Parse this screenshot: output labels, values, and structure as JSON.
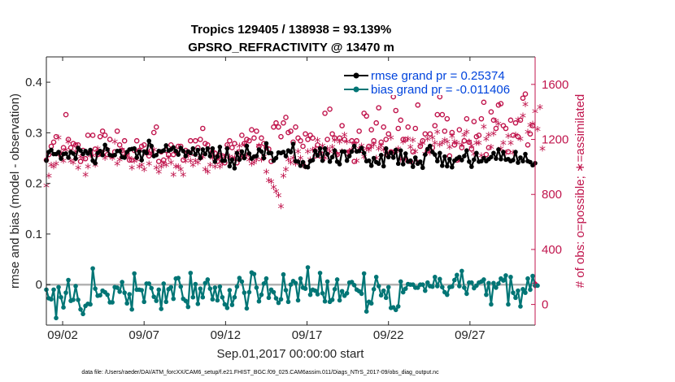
{
  "chart_data": {
    "type": "line",
    "title": "Tropics 129405 / 138938 = 93.139%",
    "subtitle": "GPSRO_REFRACTIVITY @ 13470 m",
    "xlabel": "Sep.01,2017 00:00:00 start",
    "ylabel": "rmse and bias (model - observation)",
    "ylabel_right": "# of obs: o=possible; ∗=assimilated",
    "x_tick_labels": [
      "09/02",
      "09/07",
      "09/12",
      "09/17",
      "09/22",
      "09/27"
    ],
    "x_tick_days": [
      2,
      7,
      12,
      17,
      22,
      27
    ],
    "xlim": [
      1,
      31
    ],
    "ylim": [
      -0.08,
      0.45
    ],
    "y_ticks": [
      "0",
      "0.1",
      "0.2",
      "0.3",
      "0.4"
    ],
    "y_tick_values": [
      0,
      0.1,
      0.2,
      0.3,
      0.4
    ],
    "ylim_right": [
      -150,
      1800
    ],
    "y_ticks_right": [
      "0",
      "400",
      "800",
      "1200",
      "1600"
    ],
    "y_tick_values_right": [
      0,
      400,
      800,
      1200,
      1600
    ],
    "legend": [
      {
        "label": "rmse grand pr = 0.25374",
        "color": "#000000"
      },
      {
        "label": "bias grand pr = -0.011406",
        "color": "#007575"
      }
    ],
    "series": [
      {
        "name": "rmse",
        "color": "#000000",
        "values": [
          0.245,
          0.262,
          0.266,
          0.258,
          0.258,
          0.262,
          0.249,
          0.258,
          0.259,
          0.251,
          0.262,
          0.259,
          0.249,
          0.27,
          0.265,
          0.258,
          0.264,
          0.259,
          0.266,
          0.245,
          0.24,
          0.26,
          0.264,
          0.256,
          0.276,
          0.267,
          0.256,
          0.255,
          0.256,
          0.264,
          0.264,
          0.252,
          0.251,
          0.262,
          0.267,
          0.268,
          0.269,
          0.251,
          0.263,
          0.246,
          0.263,
          0.26,
          0.284,
          0.274,
          0.254,
          0.256,
          0.264,
          0.263,
          0.265,
          0.275,
          0.265,
          0.267,
          0.271,
          0.264,
          0.257,
          0.27,
          0.264,
          0.254,
          0.263,
          0.26,
          0.269,
          0.257,
          0.266,
          0.25,
          0.267,
          0.258,
          0.269,
          0.254,
          0.269,
          0.243,
          0.253,
          0.272,
          0.245,
          0.245,
          0.269,
          0.234,
          0.247,
          0.23,
          0.26,
          0.247,
          0.263,
          0.25,
          0.274,
          0.259,
          0.249,
          0.253,
          0.254,
          0.267,
          0.263,
          0.25,
          0.279,
          0.26,
          0.26,
          0.245,
          0.25,
          0.261,
          0.26,
          0.262,
          0.254,
          0.265,
          0.262,
          0.278,
          0.244,
          0.243,
          0.235,
          0.242,
          0.233,
          0.232,
          0.244,
          0.246,
          0.264,
          0.255,
          0.269,
          0.245,
          0.269,
          0.258,
          0.243,
          0.252,
          0.265,
          0.243,
          0.238,
          0.263,
          0.263,
          0.245,
          0.254,
          0.263,
          0.274,
          0.263,
          0.264,
          0.27,
          0.26,
          0.244,
          0.245,
          0.235,
          0.25,
          0.242,
          0.239,
          0.256,
          0.234,
          0.269,
          0.252,
          0.261,
          0.251,
          0.266,
          0.239,
          0.265,
          0.238,
          0.259,
          0.243,
          0.245,
          0.233,
          0.251,
          0.239,
          0.243,
          0.231,
          0.257,
          0.268,
          0.274,
          0.262,
          0.257,
          0.244,
          0.26,
          0.235,
          0.253,
          0.234,
          0.248,
          0.232,
          0.245,
          0.249,
          0.252,
          0.246,
          0.254,
          0.265,
          0.243,
          0.233,
          0.247,
          0.26,
          0.243,
          0.244,
          0.25,
          0.244,
          0.248,
          0.252,
          0.26,
          0.249,
          0.267,
          0.248,
          0.262,
          0.247,
          0.248,
          0.244,
          0.246,
          0.262,
          0.241,
          0.251,
          0.244,
          0.258,
          0.244,
          0.242,
          0.236,
          0.24
        ]
      },
      {
        "name": "bias",
        "color": "#007575",
        "values": [
          -0.01,
          -0.027,
          -0.029,
          -0.01,
          -0.066,
          -0.005,
          -0.025,
          -0.045,
          -0.016,
          0.009,
          -0.032,
          -0.03,
          -0.003,
          -0.03,
          -0.049,
          -0.058,
          -0.042,
          -0.038,
          -0.039,
          0.032,
          -0.008,
          -0.022,
          -0.021,
          -0.012,
          -0.015,
          -0.02,
          -0.035,
          -0.035,
          -0.005,
          -0.006,
          -0.014,
          0.005,
          -0.016,
          -0.037,
          -0.019,
          -0.049,
          0.022,
          -0.01,
          -0.01,
          -0.011,
          -0.034,
          0.002,
          0.002,
          -0.007,
          -0.024,
          -0.032,
          -0.01,
          -0.048,
          0.002,
          -0.034,
          -0.009,
          -0.005,
          -0.028,
          0.012,
          0.013,
          -0.004,
          -0.028,
          -0.032,
          -0.044,
          0.023,
          -0.025,
          0.001,
          -0.038,
          -0.008,
          -0.025,
          0.003,
          0.01,
          -0.008,
          -0.029,
          -0.006,
          -0.031,
          -0.004,
          -0.025,
          -0.039,
          -0.046,
          -0.011,
          -0.04,
          -0.025,
          -0.004,
          0.013,
          0.006,
          -0.016,
          -0.047,
          -0.015,
          0.024,
          0.021,
          -0.006,
          -0.033,
          -0.02,
          0.002,
          0.012,
          -0.026,
          -0.01,
          -0.015,
          -0.027,
          -0.036,
          -0.029,
          0.02,
          -0.011,
          -0.034,
          0.0,
          0.007,
          0.003,
          -0.031,
          0.012,
          -0.006,
          -0.008,
          0.034,
          -0.02,
          -0.01,
          -0.012,
          -0.019,
          0.023,
          -0.017,
          -0.033,
          0.006,
          -0.034,
          -0.03,
          -0.009,
          0.01,
          -0.031,
          -0.013,
          -0.022,
          -0.017,
          0.004,
          0.005,
          -0.001,
          -0.01,
          -0.013,
          -0.018,
          0.022,
          -0.053,
          -0.034,
          -0.037,
          -0.009,
          0.015,
          -0.003,
          -0.021,
          -0.012,
          -0.026,
          -0.005,
          -0.046,
          -0.045,
          -0.05,
          -0.043,
          0.006,
          -0.015,
          -0.008,
          0.001,
          0.0,
          0.0,
          -0.006,
          -0.006,
          0.0,
          0.0,
          -0.012,
          0.004,
          -0.003,
          -0.004,
          0.015,
          -0.003,
          0.011,
          -0.005,
          -0.015,
          -0.02,
          -0.005,
          -0.004,
          0.009,
          0.019,
          -0.003,
          0.027,
          -0.006,
          -0.018,
          0.004,
          0.004,
          -0.007,
          -0.002,
          0.004,
          0.006,
          0.01,
          -0.02,
          0.003,
          -0.039,
          0.003,
          -0.006,
          0.002,
          0.012,
          0.008,
          0.018,
          -0.039,
          0.015,
          -0.016,
          -0.026,
          -0.012,
          -0.043,
          -0.009,
          -0.016,
          0.012,
          -0.01,
          0.017,
          -0.002,
          -0.002
        ]
      },
      {
        "name": "# of obs possible (o)",
        "axis": "right",
        "color": "#c0144c",
        "values": [
          1050,
          1090,
          1150,
          1180,
          1220,
          1100,
          1080,
          1140,
          1380,
          1200,
          1140,
          1170,
          1160,
          1160,
          1040,
          1120,
          1060,
          1230,
          1110,
          1230,
          1130,
          1090,
          1220,
          1260,
          1230,
          1090,
          1200,
          1080,
          1110,
          1260,
          1160,
          1120,
          1190,
          1100,
          1050,
          1050,
          1120,
          1190,
          1120,
          1150,
          1160,
          1110,
          1080,
          1120,
          1250,
          1290,
          1040,
          1110,
          1050,
          1120,
          1090,
          1160,
          1090,
          1110,
          1150,
          1150,
          1050,
          1120,
          1110,
          1190,
          1100,
          1190,
          1140,
          1200,
          1280,
          1170,
          1160,
          1120,
          1110,
          1100,
          1040,
          1080,
          1080,
          1030,
          1160,
          1190,
          1140,
          1170,
          1030,
          1110,
          1230,
          1170,
          1200,
          1190,
          1270,
          1210,
          1260,
          1150,
          1210,
          1170,
          1140,
          1130,
          1040,
          1290,
          1320,
          1290,
          1220,
          1320,
          1360,
          1250,
          1260,
          1180,
          1290,
          1210,
          1190,
          1150,
          1240,
          1200,
          1230,
          1210,
          1080,
          1160,
          1080,
          1120,
          1390,
          1200,
          1420,
          1240,
          1210,
          1090,
          1210,
          1300,
          1200,
          1100,
          1110,
          1190,
          1040,
          1190,
          1260,
          1120,
          1390,
          1370,
          1150,
          1270,
          1190,
          1320,
          1430,
          1180,
          1290,
          1200,
          1240,
          1110,
          1510,
          1410,
          1280,
          1340,
          1200,
          1200,
          1290,
          1040,
          1110,
          1280,
          1450,
          1150,
          1190,
          1240,
          1120,
          1240,
          1140,
          1300,
          1380,
          1510,
          1380,
          1260,
          1350,
          1080,
          1250,
          1160,
          1050,
          1270,
          1140,
          1190,
          1350,
          1180,
          1130,
          1330,
          1220,
          1230,
          1350,
          1470,
          1090,
          1140,
          1400,
          1340,
          1280,
          1450,
          1460,
          1300,
          1280,
          1110,
          1340,
          1230,
          1320,
          1220,
          1340,
          1500,
          1530,
          1160,
          1240,
          1300
        ]
      },
      {
        "name": "# of obs assimilated (∗)",
        "axis": "right",
        "color": "#c0144c",
        "values": [
          860,
          930,
          1010,
          1000,
          1020,
          1210,
          1100,
          1040,
          1120,
          1180,
          1040,
          1030,
          1110,
          990,
          1070,
          1060,
          940,
          1000,
          1080,
          1080,
          1010,
          1130,
          1090,
          1100,
          1060,
          1120,
          1080,
          1060,
          1180,
          1020,
          1050,
          1120,
          1080,
          1080,
          1060,
          990,
          1040,
          1050,
          1000,
          1010,
          980,
          1090,
          1020,
          1090,
          1120,
          990,
          960,
          1000,
          1020,
          1010,
          1060,
          1030,
          940,
          1000,
          1000,
          980,
          940,
          1040,
          1080,
          1040,
          1010,
          1040,
          1030,
          1060,
          1070,
          980,
          960,
          1010,
          1060,
          1000,
          1060,
          1000,
          1020,
          1070,
          1140,
          1070,
          1060,
          1060,
          1100,
          1150,
          1070,
          1160,
          1080,
          1050,
          1020,
          1030,
          1050,
          1150,
          1050,
          1070,
          960,
          900,
          890,
          850,
          820,
          790,
          710,
          930,
          980,
          1050,
          1030,
          1060,
          1020,
          1110,
          1060,
          1020,
          1000,
          1110,
          1050,
          1120,
          1130,
          1190,
          1100,
          1150,
          1060,
          1130,
          1110,
          1140,
          1190,
          1090,
          1180,
          1110,
          1230,
          1180,
          1110,
          1120,
          1170,
          1040,
          1130,
          1150,
          1070,
          1130,
          1120,
          1140,
          1160,
          1060,
          1130,
          1150,
          1120,
          1090,
          1080,
          1210,
          1100,
          1110,
          1130,
          1050,
          1180,
          1050,
          1200,
          1140,
          1190,
          1110,
          1030,
          1160,
          1170,
          1090,
          1200,
          1100,
          1210,
          1170,
          1250,
          1160,
          1170,
          1190,
          1180,
          1140,
          1220,
          1180,
          1170,
          1050,
          1160,
          1230,
          1250,
          1180,
          1150,
          1090,
          1170,
          1170,
          1080,
          1290,
          1200,
          1230,
          1140,
          1240,
          1330,
          1310,
          1130,
          1170,
          1100,
          1220,
          1170,
          1100,
          1230,
          1340,
          1200,
          1370,
          1450,
          1250,
          1300,
          1310,
          1400,
          1270,
          1430,
          1130
        ]
      }
    ]
  },
  "footer": {
    "note": "data file: /Users/raeder/DAI/ATM_forcXX/CAM6_setup/f.e21.FHIST_BGC.f09_025.CAM6assim.011/Diags_NTrS_2017-09/obs_diag_output.nc"
  }
}
